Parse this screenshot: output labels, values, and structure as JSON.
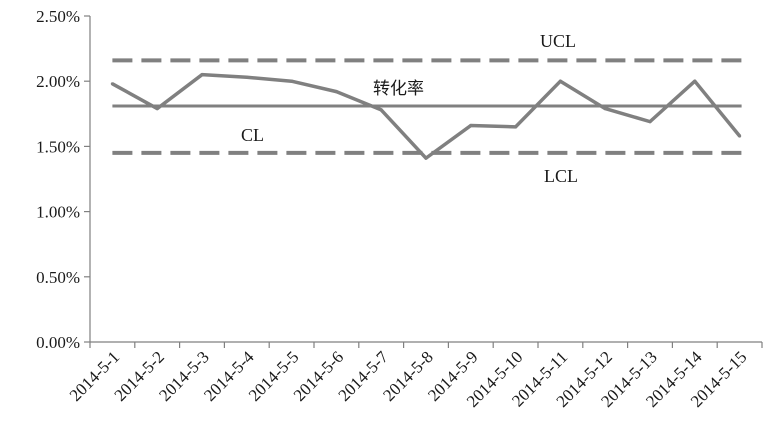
{
  "chart_data": {
    "type": "line",
    "title": "",
    "xlabel": "",
    "ylabel": "",
    "categories": [
      "2014-5-1",
      "2014-5-2",
      "2014-5-3",
      "2014-5-4",
      "2014-5-5",
      "2014-5-6",
      "2014-5-7",
      "2014-5-8",
      "2014-5-9",
      "2014-5-10",
      "2014-5-11",
      "2014-5-12",
      "2014-5-13",
      "2014-5-14",
      "2014-5-15"
    ],
    "ylim": [
      0,
      0.025
    ],
    "y_ticks": [
      0,
      0.005,
      0.01,
      0.015,
      0.02,
      0.025
    ],
    "y_tick_labels": [
      "0.00%",
      "0.50%",
      "1.00%",
      "1.50%",
      "2.00%",
      "2.50%"
    ],
    "grid": false,
    "series": [
      {
        "name": "转化率",
        "values": [
          0.0198,
          0.0179,
          0.0205,
          0.0203,
          0.02,
          0.0192,
          0.0178,
          0.0141,
          0.0166,
          0.0165,
          0.02,
          0.0179,
          0.0169,
          0.02,
          0.0158
        ],
        "color": "#808080",
        "style": "solid"
      }
    ],
    "reference_lines": [
      {
        "label": "UCL",
        "value": 0.0216,
        "style": "dashed",
        "color": "#808080"
      },
      {
        "label": "CL",
        "value": 0.0181,
        "style": "solid",
        "color": "#808080"
      },
      {
        "label": "LCL",
        "value": 0.0145,
        "style": "dashed",
        "color": "#808080"
      }
    ],
    "annotations": {
      "series_label": "转化率",
      "ucl_label": "UCL",
      "cl_label": "CL",
      "lcl_label": "LCL"
    }
  }
}
